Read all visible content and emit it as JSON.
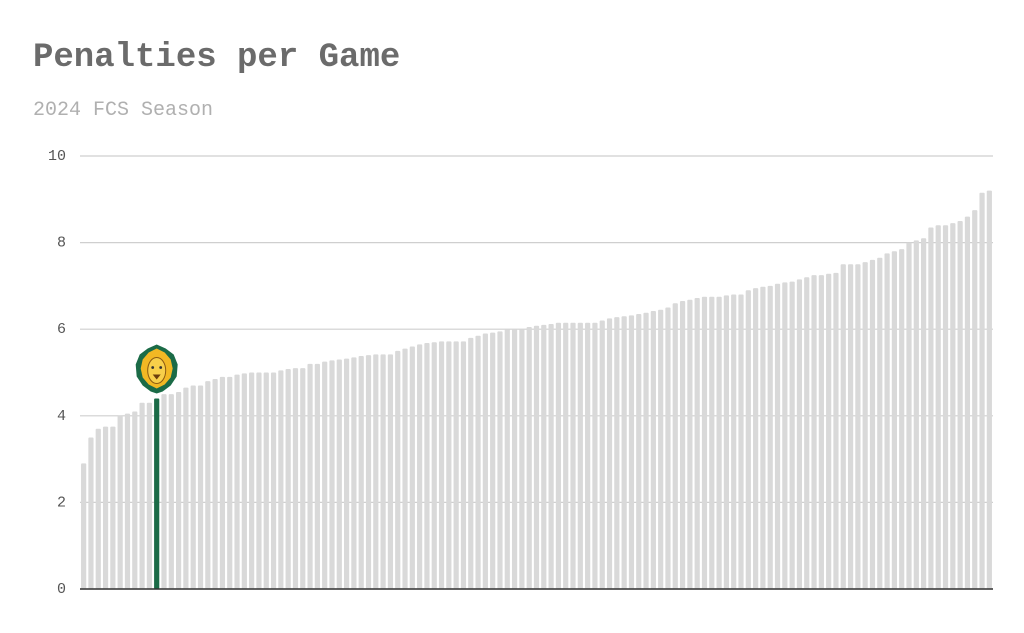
{
  "chart_data": {
    "type": "bar",
    "title": "Penalties per Game",
    "subtitle": "2024 FCS Season",
    "categories": [
      null,
      null,
      null,
      null,
      null,
      null,
      null,
      null,
      null,
      null,
      null,
      null,
      null,
      null,
      null,
      null,
      null,
      null,
      null,
      null,
      null,
      null,
      null,
      null,
      null,
      null,
      null,
      null,
      null,
      null,
      null,
      null,
      null,
      null,
      null,
      null,
      null,
      null,
      null,
      null,
      null,
      null,
      null,
      null,
      null,
      null,
      null,
      null,
      null,
      null,
      null,
      null,
      null,
      null,
      null,
      null,
      null,
      null,
      null,
      null,
      null,
      null,
      null,
      null,
      null,
      null,
      null,
      null,
      null,
      null,
      null,
      null,
      null,
      null,
      null,
      null,
      null,
      null,
      null,
      null,
      null,
      null,
      null,
      null,
      null,
      null,
      null,
      null,
      null,
      null,
      null,
      null,
      null,
      null,
      null,
      null,
      null,
      null,
      null,
      null,
      null,
      null,
      null,
      null,
      null,
      null,
      null,
      null,
      null,
      null,
      null,
      null,
      null,
      null,
      null,
      null,
      null,
      null,
      null,
      null,
      null,
      null,
      null,
      null,
      null
    ],
    "values": [
      2.9,
      3.5,
      3.7,
      3.75,
      3.75,
      4.0,
      4.05,
      4.1,
      4.3,
      4.3,
      4.4,
      4.5,
      4.5,
      4.55,
      4.65,
      4.7,
      4.7,
      4.8,
      4.85,
      4.9,
      4.9,
      4.95,
      4.98,
      5.0,
      5.0,
      5.0,
      5.0,
      5.05,
      5.08,
      5.1,
      5.1,
      5.2,
      5.2,
      5.25,
      5.28,
      5.3,
      5.32,
      5.35,
      5.38,
      5.4,
      5.42,
      5.42,
      5.42,
      5.5,
      5.55,
      5.6,
      5.65,
      5.68,
      5.7,
      5.72,
      5.72,
      5.72,
      5.72,
      5.8,
      5.85,
      5.9,
      5.92,
      5.95,
      6.0,
      6.0,
      6.0,
      6.05,
      6.08,
      6.1,
      6.12,
      6.15,
      6.15,
      6.15,
      6.15,
      6.15,
      6.15,
      6.2,
      6.25,
      6.28,
      6.3,
      6.32,
      6.35,
      6.38,
      6.42,
      6.45,
      6.5,
      6.6,
      6.65,
      6.68,
      6.72,
      6.75,
      6.75,
      6.75,
      6.78,
      6.8,
      6.8,
      6.9,
      6.95,
      6.98,
      7.0,
      7.05,
      7.08,
      7.1,
      7.15,
      7.2,
      7.25,
      7.25,
      7.28,
      7.3,
      7.5,
      7.5,
      7.5,
      7.55,
      7.6,
      7.65,
      7.75,
      7.8,
      7.85,
      8.0,
      8.05,
      8.1,
      8.35,
      8.4,
      8.4,
      8.45,
      8.5,
      8.6,
      8.75,
      9.15,
      9.2
    ],
    "color": "#d9d9d9",
    "highlight": {
      "index": 10,
      "color": "#1b6b47"
    },
    "ylim": [
      0,
      10
    ],
    "yticks": [
      0,
      2,
      4,
      6,
      8,
      10
    ],
    "grid": true
  }
}
